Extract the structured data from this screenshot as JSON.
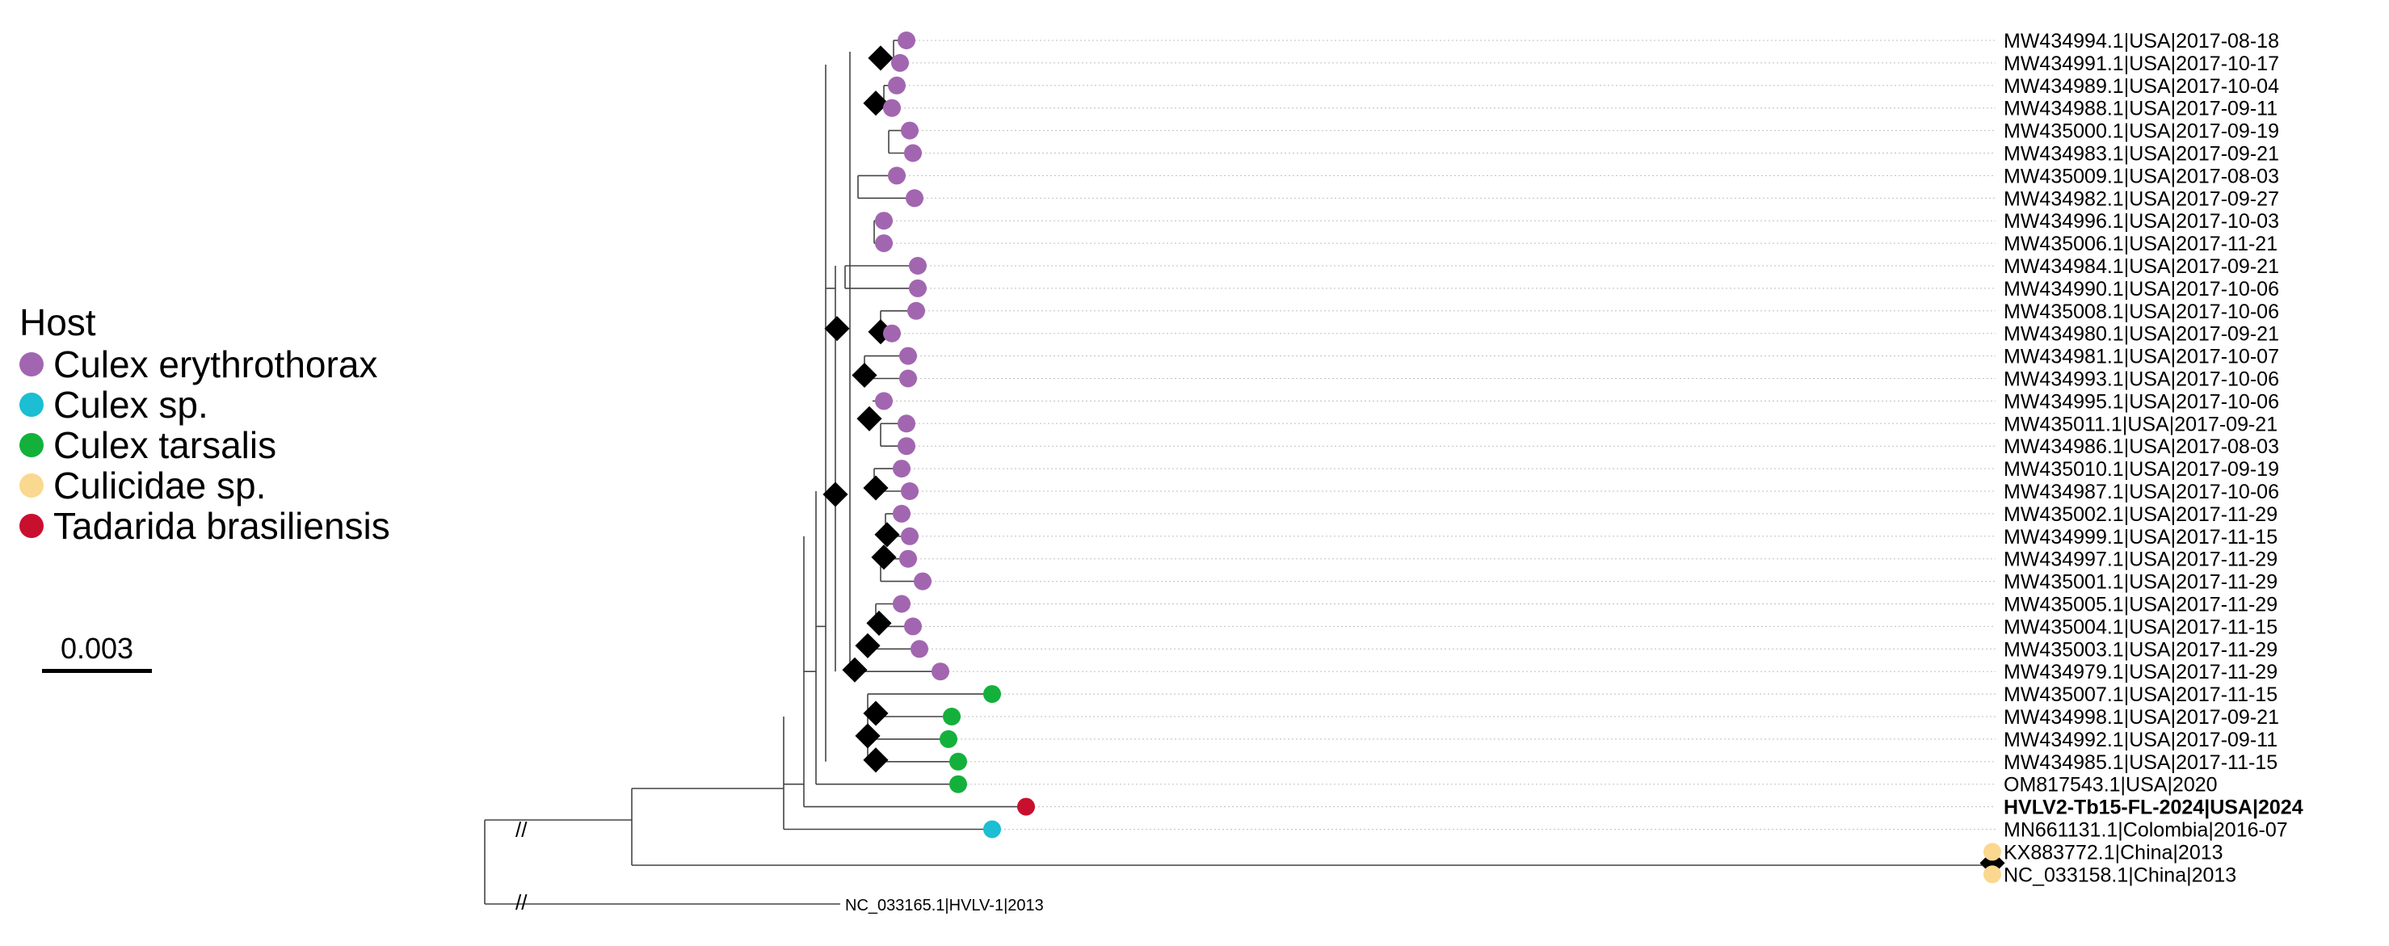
{
  "legend": {
    "title": "Host",
    "items": [
      {
        "label": "Culex erythrothorax",
        "color": "#a266b0"
      },
      {
        "label": "Culex sp.",
        "color": "#1bbed2"
      },
      {
        "label": "Culex tarsalis",
        "color": "#13b13b"
      },
      {
        "label": "Culicidae sp.",
        "color": "#fbd88f"
      },
      {
        "label": "Tadarida brasiliensis",
        "color": "#c8102e"
      }
    ]
  },
  "scale_bar": {
    "label": "0.003"
  },
  "tips": [
    {
      "label": "MW434994.1|USA|2017-08-18",
      "host": "Culex erythrothorax"
    },
    {
      "label": "MW434991.1|USA|2017-10-17",
      "host": "Culex erythrothorax"
    },
    {
      "label": "MW434989.1|USA|2017-10-04",
      "host": "Culex erythrothorax"
    },
    {
      "label": "MW434988.1|USA|2017-09-11",
      "host": "Culex erythrothorax"
    },
    {
      "label": "MW435000.1|USA|2017-09-19",
      "host": "Culex erythrothorax"
    },
    {
      "label": "MW434983.1|USA|2017-09-21",
      "host": "Culex erythrothorax"
    },
    {
      "label": "MW435009.1|USA|2017-08-03",
      "host": "Culex erythrothorax"
    },
    {
      "label": "MW434982.1|USA|2017-09-27",
      "host": "Culex erythrothorax"
    },
    {
      "label": "MW434996.1|USA|2017-10-03",
      "host": "Culex erythrothorax"
    },
    {
      "label": "MW435006.1|USA|2017-11-21",
      "host": "Culex erythrothorax"
    },
    {
      "label": "MW434984.1|USA|2017-09-21",
      "host": "Culex erythrothorax"
    },
    {
      "label": "MW434990.1|USA|2017-10-06",
      "host": "Culex erythrothorax"
    },
    {
      "label": "MW435008.1|USA|2017-10-06",
      "host": "Culex erythrothorax"
    },
    {
      "label": "MW434980.1|USA|2017-09-21",
      "host": "Culex erythrothorax"
    },
    {
      "label": "MW434981.1|USA|2017-10-07",
      "host": "Culex erythrothorax"
    },
    {
      "label": "MW434993.1|USA|2017-10-06",
      "host": "Culex erythrothorax"
    },
    {
      "label": "MW434995.1|USA|2017-10-06",
      "host": "Culex erythrothorax"
    },
    {
      "label": "MW435011.1|USA|2017-09-21",
      "host": "Culex erythrothorax"
    },
    {
      "label": "MW434986.1|USA|2017-08-03",
      "host": "Culex erythrothorax"
    },
    {
      "label": "MW435010.1|USA|2017-09-19",
      "host": "Culex erythrothorax"
    },
    {
      "label": "MW434987.1|USA|2017-10-06",
      "host": "Culex erythrothorax"
    },
    {
      "label": "MW435002.1|USA|2017-11-29",
      "host": "Culex erythrothorax"
    },
    {
      "label": "MW434999.1|USA|2017-11-15",
      "host": "Culex erythrothorax"
    },
    {
      "label": "MW434997.1|USA|2017-11-29",
      "host": "Culex erythrothorax"
    },
    {
      "label": "MW435001.1|USA|2017-11-29",
      "host": "Culex erythrothorax"
    },
    {
      "label": "MW435005.1|USA|2017-11-29",
      "host": "Culex erythrothorax"
    },
    {
      "label": "MW435004.1|USA|2017-11-15",
      "host": "Culex erythrothorax"
    },
    {
      "label": "MW435003.1|USA|2017-11-29",
      "host": "Culex erythrothorax"
    },
    {
      "label": "MW434979.1|USA|2017-11-29",
      "host": "Culex erythrothorax"
    },
    {
      "label": "MW435007.1|USA|2017-11-15",
      "host": "Culex tarsalis"
    },
    {
      "label": "MW434998.1|USA|2017-09-21",
      "host": "Culex tarsalis"
    },
    {
      "label": "MW434992.1|USA|2017-09-11",
      "host": "Culex tarsalis"
    },
    {
      "label": "MW434985.1|USA|2017-11-15",
      "host": "Culex tarsalis"
    },
    {
      "label": "OM817543.1|USA|2020",
      "host": "Culex tarsalis"
    },
    {
      "label": "HVLV2-Tb15-FL-2024|USA|2024",
      "host": "Tadarida brasiliensis",
      "bold": true
    },
    {
      "label": "MN661131.1|Colombia|2016-07",
      "host": "Culex sp."
    },
    {
      "label": "KX883772.1|China|2013",
      "host": "Culicidae sp."
    },
    {
      "label": "NC_033158.1|China|2013",
      "host": "Culicidae sp."
    }
  ],
  "outgroup": {
    "label": "NC_033165.1|HVLV-1|2013"
  }
}
